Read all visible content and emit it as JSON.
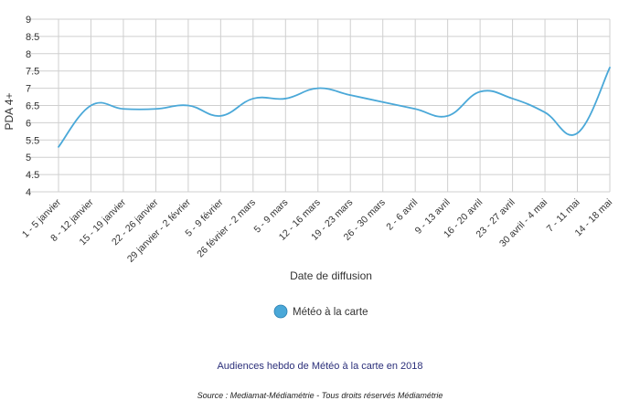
{
  "chart_data": {
    "type": "line",
    "xlabel": "Date de diffusion",
    "ylabel": "PDA 4+",
    "ylim": [
      4,
      9
    ],
    "yticks": [
      4,
      4.5,
      5,
      5.5,
      6,
      6.5,
      7,
      7.5,
      8,
      8.5,
      9
    ],
    "grid": true,
    "legend_placement": "bottom-center",
    "categories": [
      "1 - 5 janvier",
      "8 - 12 janvier",
      "15 - 19 janvier",
      "22 - 26 janvier",
      "29 janvier - 2 février",
      "5 - 9 février",
      "26 février - 2 mars",
      "5 - 9 mars",
      "12 - 16 mars",
      "19 - 23 mars",
      "26 - 30 mars",
      "2 - 6 avril",
      "9 - 13 avril",
      "16 - 20 avril",
      "23 - 27 avril",
      "30 avril - 4 mai",
      "7 - 11 mai",
      "14 - 18 mai"
    ],
    "series": [
      {
        "name": "Météo à la carte",
        "color": "#4aa8d8",
        "values": [
          5.3,
          6.5,
          6.4,
          6.4,
          6.5,
          6.2,
          6.7,
          6.7,
          7.0,
          6.8,
          6.6,
          6.4,
          6.2,
          6.9,
          6.7,
          6.3,
          5.7,
          7.6
        ]
      }
    ]
  },
  "caption": "Audiences hebdo de Météo à la carte en 2018",
  "source": "Source : Mediamat-Médiamétrie - Tous droits réservés Médiamétrie"
}
